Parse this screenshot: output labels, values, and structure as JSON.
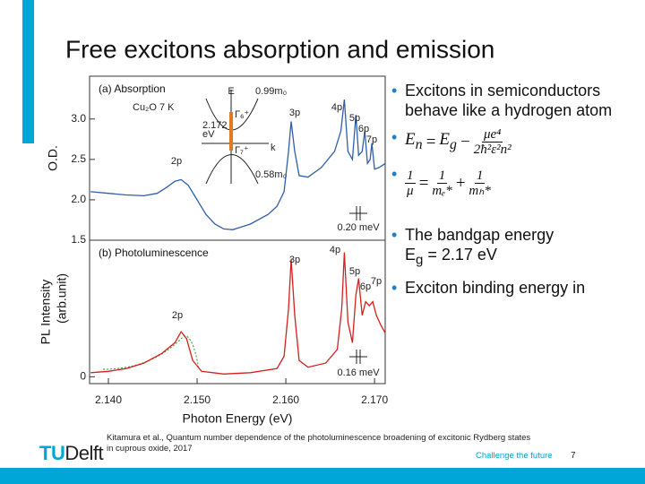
{
  "header": {
    "title": "Free excitons absorption and emission"
  },
  "figure": {
    "chart_data": [
      {
        "type": "line",
        "title": "(a) Absorption",
        "ylabel": "O.D.",
        "xlim": [
          2.138,
          2.1712
        ],
        "ylim": [
          1.5,
          3.53
        ],
        "yticks": [
          1.5,
          {
            "value": 2.0,
            "label": "2.0"
          },
          2.5,
          {
            "value": 3.0,
            "label": "3.0"
          }
        ],
        "x": [
          2.138,
          2.14,
          2.142,
          2.144,
          2.1455,
          2.1465,
          2.1475,
          2.1482,
          2.149,
          2.15,
          2.151,
          2.152,
          2.153,
          2.154,
          2.156,
          2.158,
          2.159,
          2.1598,
          2.1603,
          2.1606,
          2.161,
          2.1615,
          2.1625,
          2.164,
          2.1655,
          2.1662,
          2.1666,
          2.167,
          2.1675,
          2.1679,
          2.1682,
          2.1686,
          2.1689,
          2.1692,
          2.1695,
          2.1697,
          2.17,
          2.1705,
          2.1712
        ],
        "series": [
          {
            "color": "#2f5fa8",
            "values": [
              2.1,
              2.08,
              2.06,
              2.05,
              2.08,
              2.15,
              2.23,
              2.25,
              2.18,
              2.0,
              1.82,
              1.7,
              1.64,
              1.63,
              1.7,
              1.82,
              1.92,
              2.1,
              2.6,
              2.97,
              2.6,
              2.3,
              2.28,
              2.4,
              2.6,
              2.85,
              3.24,
              2.6,
              2.5,
              3.05,
              2.55,
              2.6,
              2.85,
              2.45,
              2.5,
              2.7,
              2.38,
              2.4,
              2.45
            ]
          }
        ],
        "annotations": [
          "Cu₂O  7 K",
          "E",
          "0.99m₀",
          "Γ₆⁺",
          "2.172",
          "eV",
          "Γ₇⁺",
          "k",
          "0.58m₀",
          "2p",
          "3p",
          "4p",
          "5p",
          "6p",
          "7p",
          "0.20 meV"
        ]
      },
      {
        "type": "line",
        "title": "(b) Photoluminescence",
        "ylabel": "PL Intensity",
        "ylabel_unit": "(arb.unit)",
        "xlabel": "Photon Energy (eV)",
        "xlim": [
          2.138,
          2.1712
        ],
        "ylim": [
          -0.05,
          1.0
        ],
        "xticks": [
          {
            "value": 2.14,
            "label": "2.140"
          },
          {
            "value": 2.15,
            "label": "2.150"
          },
          {
            "value": 2.16,
            "label": "2.160"
          },
          {
            "value": 2.17,
            "label": "2.170"
          }
        ],
        "yticks": [
          0
        ],
        "x": [
          2.138,
          2.14,
          2.142,
          2.144,
          2.146,
          2.1475,
          2.1482,
          2.1488,
          2.1495,
          2.1505,
          2.153,
          2.156,
          2.159,
          2.1598,
          2.1603,
          2.1606,
          2.161,
          2.1615,
          2.1625,
          2.1645,
          2.1658,
          2.1663,
          2.1666,
          2.167,
          2.1675,
          2.1679,
          2.1682,
          2.1686,
          2.169,
          2.1694,
          2.1698,
          2.1702,
          2.1707,
          2.1712
        ],
        "series": [
          {
            "color": "#d42020",
            "values": [
              0.03,
              0.04,
              0.06,
              0.1,
              0.17,
              0.25,
              0.33,
              0.28,
              0.12,
              0.04,
              0.02,
              0.03,
              0.06,
              0.15,
              0.5,
              0.86,
              0.45,
              0.12,
              0.07,
              0.1,
              0.2,
              0.5,
              0.91,
              0.4,
              0.25,
              0.6,
              0.72,
              0.45,
              0.55,
              0.52,
              0.55,
              0.45,
              0.38,
              0.32
            ]
          }
        ],
        "annotations": [
          "2p",
          "3p",
          "4p",
          "5p",
          "6p",
          "7p",
          "0.16 meV"
        ]
      }
    ]
  },
  "bullets": {
    "b1": "Excitons in semiconductors behave like a hydrogen atom",
    "f1": {
      "lhs": "E",
      "lhs_sub": "n",
      "eq": "=",
      "rhs": "E",
      "rhs_sub": "g",
      "minus": "−",
      "num": "μe⁴",
      "den": "2ħ²ε²n²"
    },
    "f2": {
      "lhs_num": "1",
      "lhs_den": "μ",
      "eq": "=",
      "a_num": "1",
      "a_den": "mₑ*",
      "plus": "+",
      "b_num": "1",
      "b_den": "mₕ*"
    },
    "b3": "The bandgap energy",
    "b3_eq": {
      "sym": "E",
      "sub": "g",
      "rest": "= 2.17 eV"
    },
    "b4": "Exciton binding energy in"
  },
  "footer": {
    "logo_a": "TU",
    "logo_b": "Delft",
    "citation": "Kitamura et al., Quantum number dependence of the photoluminescence broadening of excitonic Rydberg states in cuprous oxide, 2017",
    "tagline": "Challenge the future",
    "page": "7"
  }
}
